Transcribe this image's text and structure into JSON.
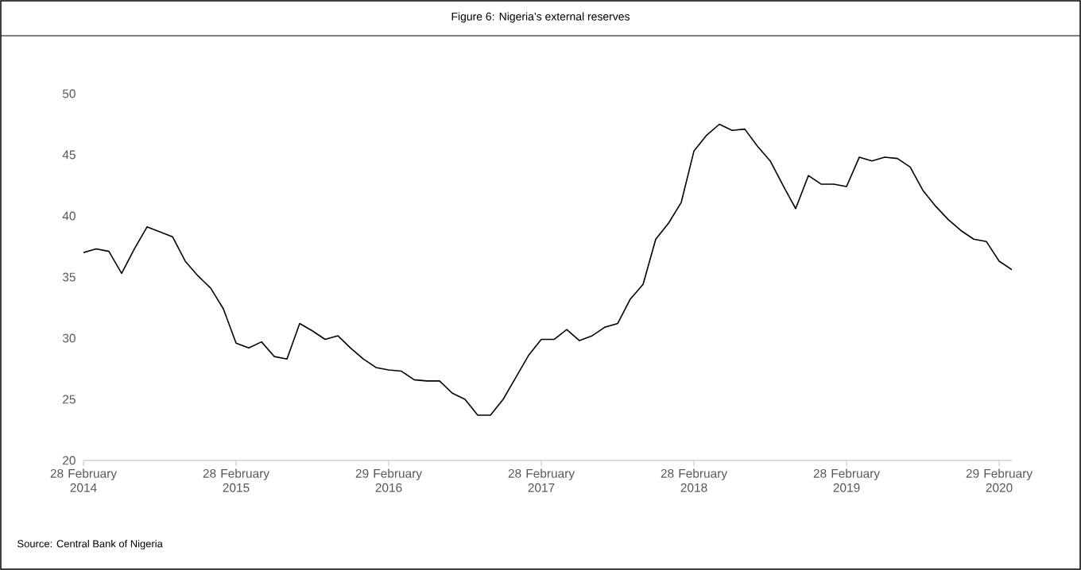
{
  "chart_data": {
    "type": "line",
    "title": "Figure 6: Nigeria’s external reserves",
    "categories": [
      "28 February 2014",
      null,
      null,
      null,
      null,
      null,
      null,
      null,
      null,
      null,
      null,
      null,
      "28 February 2015",
      null,
      null,
      null,
      null,
      null,
      null,
      null,
      null,
      null,
      null,
      null,
      "29 February 2016",
      null,
      null,
      null,
      null,
      null,
      null,
      null,
      null,
      null,
      null,
      null,
      "28 February 2017",
      null,
      null,
      null,
      null,
      null,
      null,
      null,
      null,
      null,
      null,
      null,
      "28 February 2018",
      null,
      null,
      null,
      null,
      null,
      null,
      null,
      null,
      null,
      null,
      null,
      "28 February 2019",
      null,
      null,
      null,
      null,
      null,
      null,
      null,
      null,
      null,
      null,
      null,
      "29 February 2020",
      null
    ],
    "values": [
      37.0,
      37.3,
      37.1,
      35.3,
      37.3,
      39.1,
      38.7,
      38.3,
      36.3,
      35.1,
      34.1,
      32.4,
      29.6,
      29.2,
      29.7,
      28.5,
      28.3,
      31.2,
      30.6,
      29.9,
      30.2,
      29.2,
      28.3,
      27.6,
      27.4,
      27.3,
      26.6,
      26.5,
      26.5,
      25.5,
      25.0,
      23.7,
      23.7,
      25.0,
      26.8,
      28.6,
      29.9,
      29.9,
      30.7,
      29.8,
      30.2,
      30.9,
      31.2,
      33.2,
      34.4,
      38.1,
      39.4,
      41.1,
      45.3,
      46.6,
      47.5,
      47.0,
      47.1,
      45.7,
      44.5,
      42.5,
      40.6,
      43.3,
      42.6,
      42.6,
      42.4,
      44.8,
      44.5,
      44.8,
      44.7,
      44.0,
      42.1,
      40.8,
      39.7,
      38.8,
      38.1,
      37.9,
      36.3,
      35.6
    ],
    "color": "#000000",
    "ylim": [
      20,
      50
    ],
    "yticks": [
      20,
      25,
      30,
      35,
      40,
      45,
      50
    ],
    "grid": false,
    "marker": "none",
    "line_style": "solid",
    "annotations": [
      "Source: Central Bank of Nigeria"
    ]
  }
}
